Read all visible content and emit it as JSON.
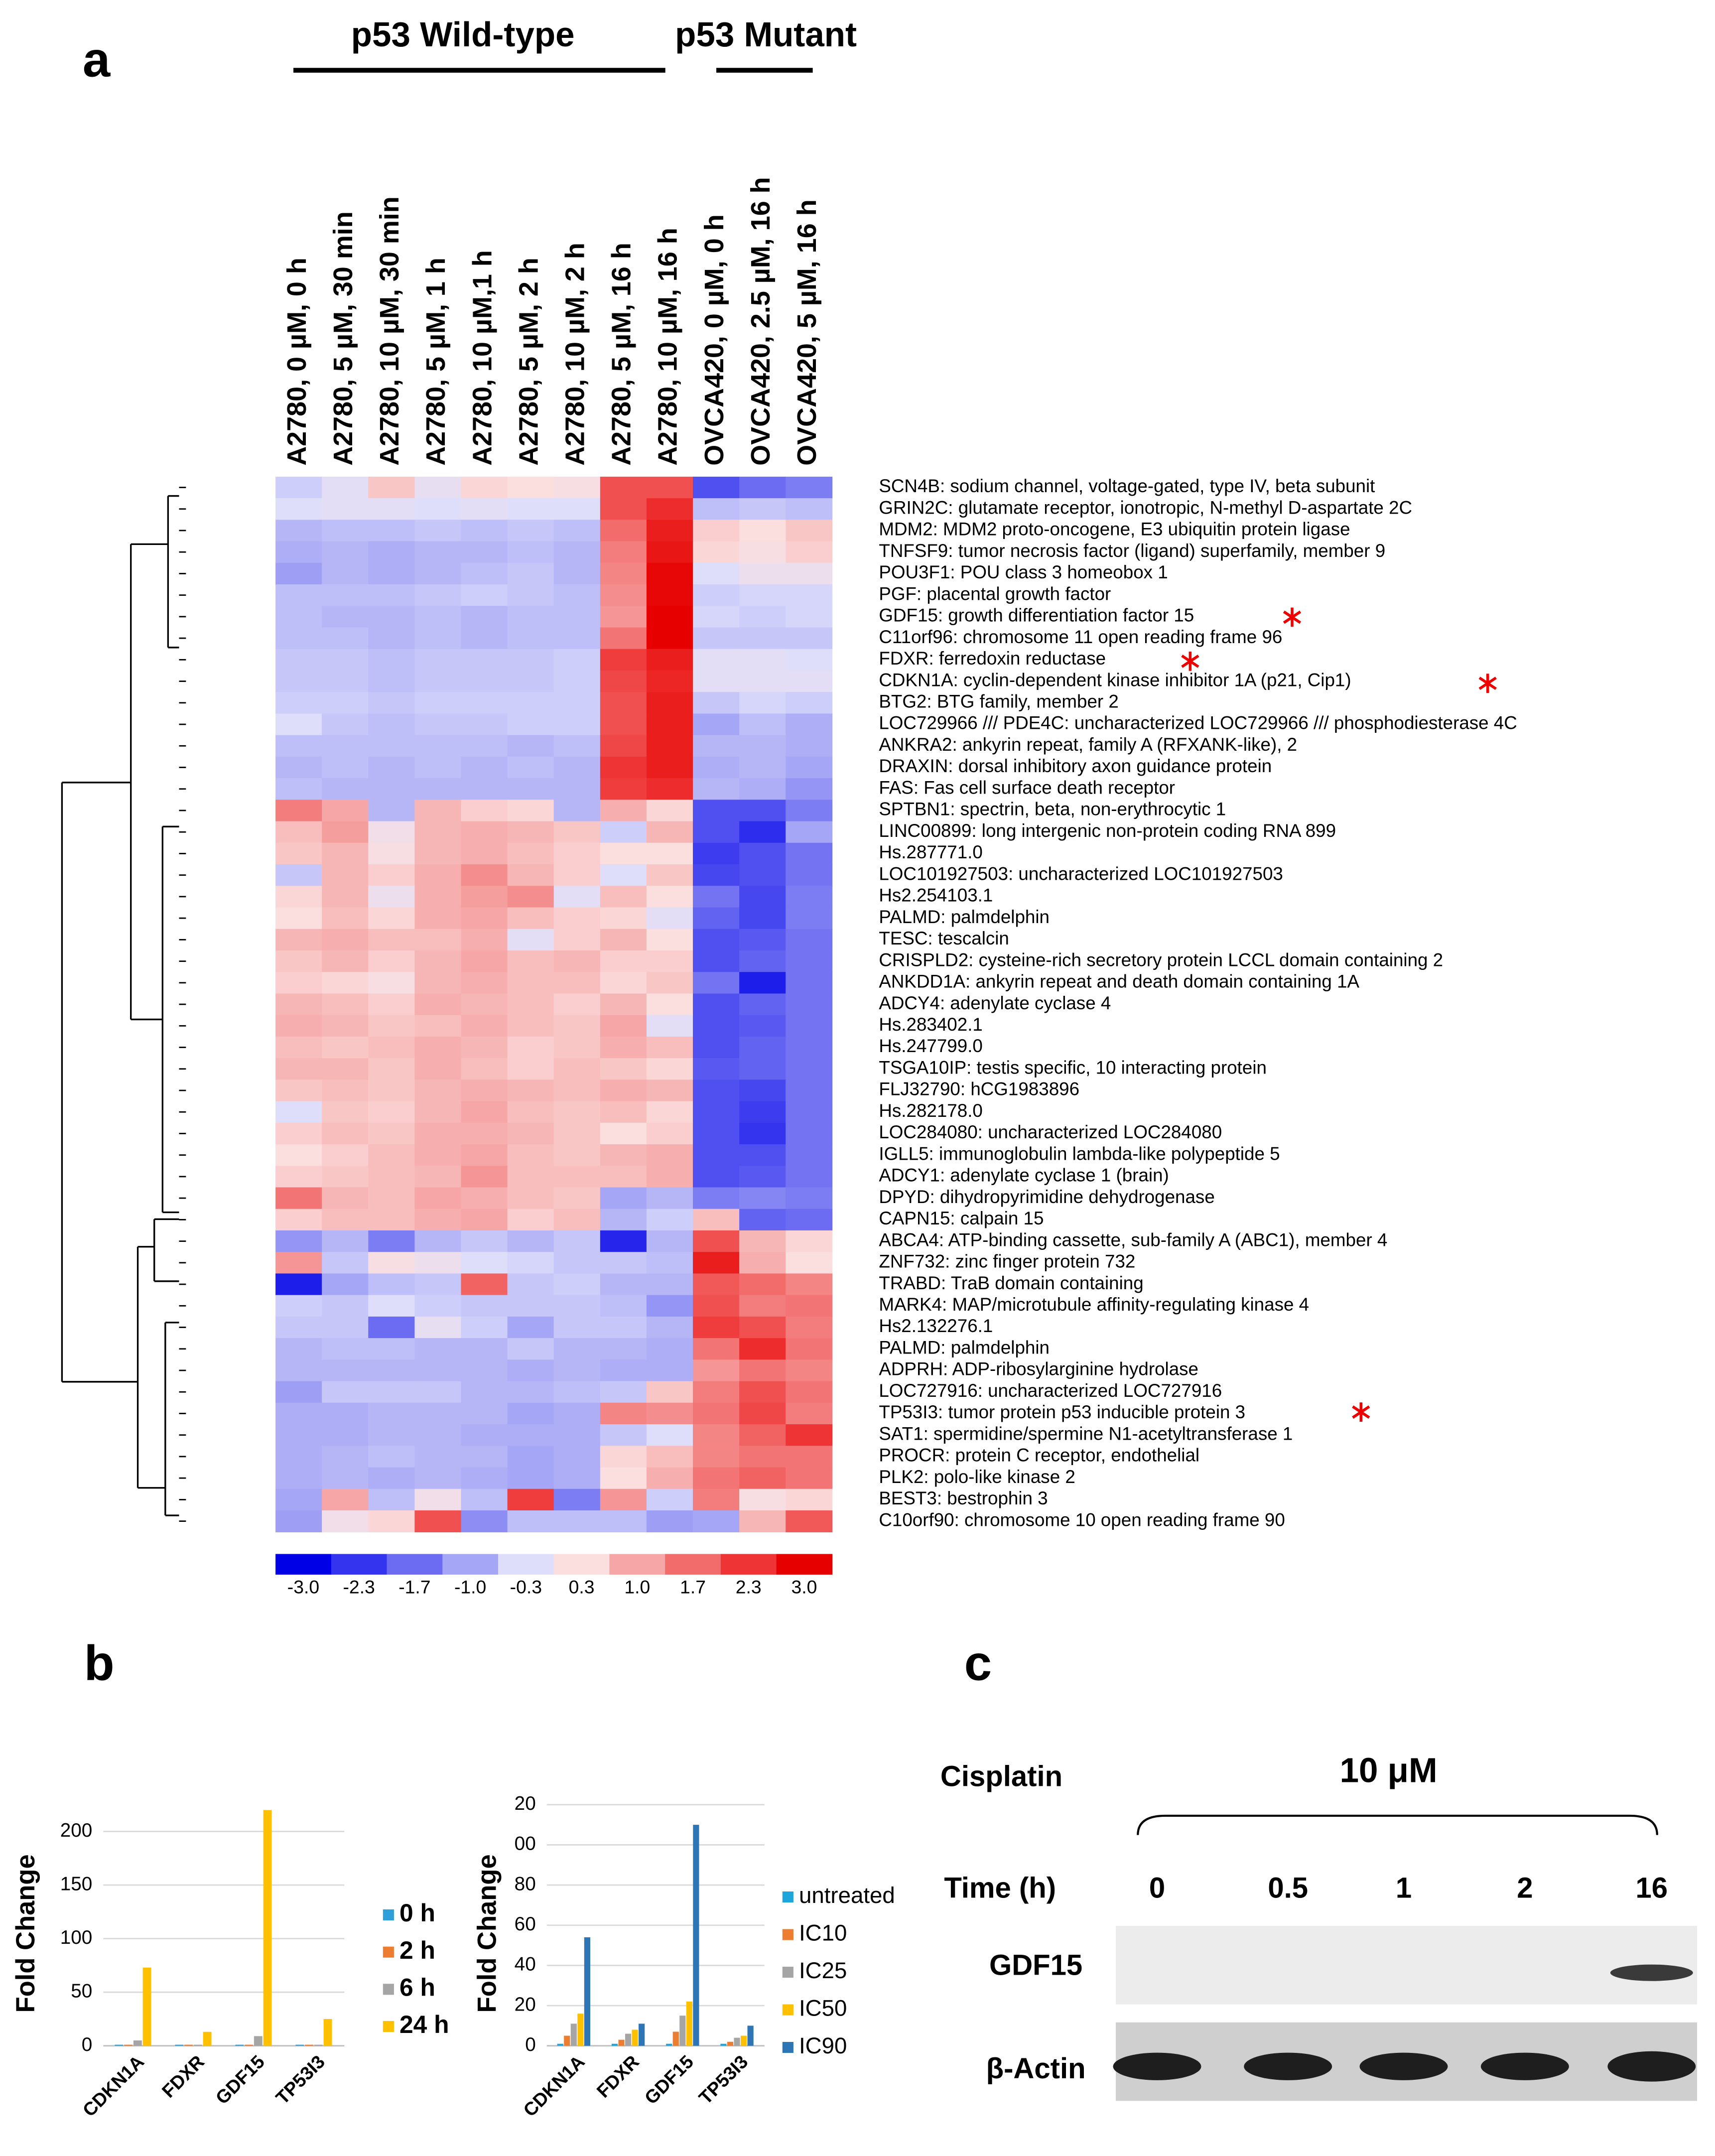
{
  "panel_labels": [
    "a",
    "b",
    "c"
  ],
  "chart_data": [
    {
      "type": "heatmap",
      "groups": [
        "p53 Wild-type",
        "p53 Mutant"
      ],
      "columns": [
        "A2780, 0 µM, 0 h",
        "A2780, 5 µM, 30 min",
        "A2780, 10 µM, 30 min",
        "A2780, 5 µM, 1 h",
        "A2780, 10 µM,1 h",
        "A2780, 5 µM, 2 h",
        "A2780, 10 µM, 2 h",
        "A2780, 5 µM, 16 h",
        "A2780, 10 µM, 16 h",
        "OVCA420, 0 µM, 0 h",
        "OVCA420, 2.5 µM, 16 h",
        "OVCA420, 5 µM, 16 h"
      ],
      "rows": [
        "SCN4B: sodium channel, voltage-gated, type IV, beta subunit",
        "GRIN2C: glutamate receptor, ionotropic, N-methyl D-aspartate 2C",
        "MDM2: MDM2 proto-oncogene, E3 ubiquitin protein ligase",
        "TNFSF9: tumor necrosis factor (ligand) superfamily, member 9",
        "POU3F1: POU class 3 homeobox 1",
        "PGF: placental growth factor",
        "GDF15: growth differentiation factor 15",
        "C11orf96: chromosome 11 open reading frame 96",
        "FDXR: ferredoxin reductase",
        "CDKN1A: cyclin-dependent kinase inhibitor 1A (p21, Cip1)",
        "BTG2: BTG family, member 2",
        "LOC729966 /// PDE4C: uncharacterized LOC729966 /// phosphodiesterase 4C",
        "ANKRA2: ankyrin repeat, family A (RFXANK-like), 2",
        "DRAXIN: dorsal inhibitory axon guidance protein",
        "FAS: Fas cell surface death receptor",
        "SPTBN1: spectrin, beta, non-erythrocytic 1",
        "LINC00899: long intergenic non-protein coding RNA 899",
        "Hs.287771.0",
        "LOC101927503: uncharacterized LOC101927503",
        "Hs2.254103.1",
        "PALMD: palmdelphin",
        "TESC: tescalcin",
        "CRISPLD2: cysteine-rich secretory protein LCCL domain containing 2",
        "ANKDD1A: ankyrin repeat and death domain containing 1A",
        "ADCY4: adenylate cyclase 4",
        "Hs.283402.1",
        "Hs.247799.0",
        "TSGA10IP: testis specific, 10 interacting protein",
        "FLJ32790: hCG1983896",
        "Hs.282178.0",
        "LOC284080: uncharacterized LOC284080",
        "IGLL5: immunoglobulin lambda-like polypeptide 5",
        "ADCY1: adenylate cyclase 1 (brain)",
        "DPYD: dihydropyrimidine dehydrogenase",
        "CAPN15: calpain 15",
        "ABCA4: ATP-binding cassette, sub-family A (ABC1), member 4",
        "ZNF732: zinc finger protein 732",
        "TRABD: TraB domain containing",
        "MARK4: MAP/microtubule affinity-regulating kinase 4",
        "Hs2.132276.1",
        "PALMD: palmdelphin",
        "ADPRH: ADP-ribosylarginine hydrolase",
        "LOC727916: uncharacterized LOC727916",
        "TP53I3: tumor protein p53 inducible protein 3",
        "SAT1: spermidine/spermine N1-acetyltransferase 1",
        "PROCR: protein C receptor, endothelial",
        "PLK2: polo-like kinase 2",
        "BEST3: bestrophin 3",
        "C10orf90: chromosome 10 open reading frame 90"
      ],
      "values": [
        [
          -0.5,
          -0.2,
          0.6,
          -0.1,
          0.4,
          0.3,
          0.2,
          2.0,
          2.0,
          -2.0,
          -1.7,
          -1.5
        ],
        [
          -0.3,
          -0.2,
          -0.2,
          -0.3,
          -0.2,
          -0.3,
          -0.3,
          2.0,
          2.4,
          -0.7,
          -0.6,
          -0.7
        ],
        [
          -0.8,
          -0.7,
          -0.7,
          -0.6,
          -0.7,
          -0.6,
          -0.7,
          1.7,
          2.6,
          0.5,
          0.3,
          0.6
        ],
        [
          -0.9,
          -0.8,
          -0.9,
          -0.8,
          -0.8,
          -0.7,
          -0.8,
          1.5,
          2.7,
          0.4,
          0.2,
          0.5
        ],
        [
          -1.1,
          -0.8,
          -0.9,
          -0.8,
          -0.7,
          -0.6,
          -0.8,
          1.4,
          2.9,
          -0.3,
          0,
          0
        ],
        [
          -0.7,
          -0.7,
          -0.7,
          -0.6,
          -0.5,
          -0.6,
          -0.7,
          1.3,
          2.9,
          -0.5,
          -0.4,
          -0.4
        ],
        [
          -0.7,
          -0.8,
          -0.8,
          -0.7,
          -0.8,
          -0.7,
          -0.7,
          1.2,
          3.0,
          -0.4,
          -0.5,
          -0.4
        ],
        [
          -0.7,
          -0.7,
          -0.8,
          -0.7,
          -0.8,
          -0.7,
          -0.7,
          1.6,
          3.0,
          -0.6,
          -0.6,
          -0.6
        ],
        [
          -0.6,
          -0.6,
          -0.7,
          -0.6,
          -0.6,
          -0.6,
          -0.5,
          2.2,
          2.6,
          -0.2,
          -0.2,
          -0.3
        ],
        [
          -0.6,
          -0.6,
          -0.7,
          -0.6,
          -0.6,
          -0.6,
          -0.5,
          2.1,
          2.5,
          -0.2,
          -0.2,
          -0.2
        ],
        [
          -0.5,
          -0.5,
          -0.6,
          -0.5,
          -0.5,
          -0.5,
          -0.5,
          2.0,
          2.6,
          -0.6,
          -0.4,
          -0.5
        ],
        [
          -0.3,
          -0.6,
          -0.7,
          -0.6,
          -0.6,
          -0.5,
          -0.5,
          2.0,
          2.6,
          -1.0,
          -0.7,
          -0.9
        ],
        [
          -0.7,
          -0.7,
          -0.7,
          -0.7,
          -0.7,
          -0.8,
          -0.7,
          2.1,
          2.6,
          -0.8,
          -0.8,
          -0.9
        ],
        [
          -0.8,
          -0.7,
          -0.8,
          -0.7,
          -0.8,
          -0.7,
          -0.8,
          2.3,
          2.6,
          -0.9,
          -0.8,
          -1.0
        ],
        [
          -0.7,
          -0.8,
          -0.8,
          -0.8,
          -0.8,
          -0.8,
          -0.8,
          2.2,
          2.4,
          -0.8,
          -0.9,
          -1.2
        ],
        [
          1.5,
          1.0,
          -0.8,
          0.8,
          0.5,
          0.4,
          -0.8,
          0.9,
          0.4,
          -2.0,
          -2.0,
          -1.5
        ],
        [
          0.7,
          1.1,
          0.1,
          0.8,
          0.9,
          0.8,
          0.6,
          -0.5,
          0.8,
          -2.0,
          -2.4,
          -1.0
        ],
        [
          0.6,
          0.8,
          0.2,
          0.8,
          0.9,
          0.7,
          0.5,
          0.3,
          0.3,
          -2.2,
          -2.0,
          -1.6
        ],
        [
          -0.6,
          0.8,
          0.5,
          0.9,
          1.3,
          0.8,
          0.5,
          -0.3,
          0.6,
          -2.1,
          -2.0,
          -1.6
        ],
        [
          0.4,
          0.8,
          0,
          0.9,
          1.1,
          1.3,
          -0.2,
          0.7,
          0.3,
          -1.6,
          -2.1,
          -1.5
        ],
        [
          0.3,
          0.7,
          0.4,
          0.9,
          1.0,
          0.7,
          0.5,
          0.4,
          -0.2,
          -1.8,
          -2.1,
          -1.5
        ],
        [
          0.8,
          0.9,
          0.7,
          0.7,
          0.9,
          -0.2,
          0.5,
          0.8,
          0.3,
          -2.0,
          -1.9,
          -1.6
        ],
        [
          0.6,
          0.8,
          0.5,
          0.8,
          1.0,
          0.7,
          0.8,
          0.5,
          0.5,
          -2.0,
          -1.8,
          -1.6
        ],
        [
          0.5,
          0.4,
          0.2,
          0.8,
          0.9,
          0.7,
          0.7,
          0.4,
          0.6,
          -1.6,
          -2.6,
          -1.6
        ],
        [
          0.8,
          0.7,
          0.5,
          0.9,
          0.8,
          0.7,
          0.5,
          0.8,
          0.3,
          -2.0,
          -1.8,
          -1.6
        ],
        [
          0.9,
          0.8,
          0.6,
          0.7,
          0.9,
          0.7,
          0.6,
          1.0,
          -0.2,
          -2.0,
          -1.9,
          -1.6
        ],
        [
          0.7,
          0.6,
          0.7,
          0.9,
          0.8,
          0.5,
          0.6,
          0.9,
          0.7,
          -2.0,
          -1.8,
          -1.6
        ],
        [
          0.8,
          0.8,
          0.6,
          0.9,
          0.7,
          0.5,
          0.7,
          0.6,
          0.4,
          -1.9,
          -1.8,
          -1.6
        ],
        [
          0.6,
          0.7,
          0.6,
          0.8,
          0.9,
          0.8,
          0.7,
          0.9,
          0.8,
          -2.0,
          -2.1,
          -1.6
        ],
        [
          -0.3,
          0.6,
          0.5,
          0.8,
          1.0,
          0.7,
          0.6,
          0.7,
          0.4,
          -2.0,
          -2.2,
          -1.6
        ],
        [
          0.5,
          0.7,
          0.6,
          0.9,
          0.9,
          0.8,
          0.6,
          0.3,
          0.5,
          -2.0,
          -2.3,
          -1.6
        ],
        [
          0.3,
          0.5,
          0.7,
          0.9,
          1.0,
          0.7,
          0.6,
          0.8,
          0.9,
          -2.0,
          -2.0,
          -1.6
        ],
        [
          0.5,
          0.6,
          0.7,
          0.8,
          1.2,
          0.7,
          0.7,
          0.7,
          0.9,
          -2.0,
          -1.9,
          -1.6
        ],
        [
          1.6,
          0.8,
          0.7,
          1.0,
          0.9,
          0.7,
          0.6,
          -1.0,
          -0.8,
          -1.5,
          -1.4,
          -1.5
        ],
        [
          0.5,
          0.7,
          0.7,
          0.9,
          1.0,
          0.5,
          0.7,
          -0.8,
          -0.5,
          0.7,
          -1.8,
          -1.7
        ],
        [
          -1.2,
          -0.8,
          -1.5,
          -0.8,
          -0.6,
          -0.8,
          -0.6,
          -2.5,
          -0.8,
          2.0,
          0.8,
          0.4
        ],
        [
          1.2,
          -0.6,
          0.2,
          0,
          -0.3,
          -0.4,
          -0.6,
          -0.6,
          -0.7,
          2.6,
          0.9,
          0.3
        ],
        [
          -2.6,
          -1.0,
          -0.7,
          -0.6,
          1.8,
          -0.6,
          -0.5,
          -0.8,
          -0.8,
          1.9,
          1.7,
          1.4
        ],
        [
          -0.5,
          -0.6,
          -0.3,
          -0.5,
          -0.6,
          -0.6,
          -0.6,
          -0.7,
          -1.2,
          2.0,
          1.5,
          1.6
        ],
        [
          -0.6,
          -0.6,
          -1.7,
          -0.1,
          -0.5,
          -1.0,
          -0.6,
          -0.6,
          -0.8,
          2.2,
          2.0,
          1.5
        ],
        [
          -0.8,
          -0.7,
          -0.7,
          -0.8,
          -0.8,
          -0.6,
          -0.8,
          -0.8,
          -0.9,
          1.6,
          2.4,
          1.6
        ],
        [
          -0.8,
          -0.8,
          -0.8,
          -0.8,
          -0.8,
          -0.9,
          -0.8,
          -0.9,
          -0.9,
          1.2,
          1.6,
          1.4
        ],
        [
          -1.1,
          -0.6,
          -0.6,
          -0.6,
          -0.8,
          -0.8,
          -0.7,
          -0.6,
          0.6,
          1.5,
          2.0,
          1.6
        ],
        [
          -0.9,
          -0.9,
          -0.8,
          -0.8,
          -0.8,
          -1.0,
          -0.9,
          1.4,
          1.3,
          1.6,
          2.1,
          1.5
        ],
        [
          -0.9,
          -0.9,
          -0.8,
          -0.8,
          -0.9,
          -0.9,
          -0.9,
          -0.6,
          -0.3,
          1.4,
          1.8,
          2.3
        ],
        [
          -0.9,
          -0.8,
          -0.7,
          -0.8,
          -0.8,
          -1.0,
          -0.9,
          0.4,
          0.7,
          1.4,
          1.6,
          1.6
        ],
        [
          -0.9,
          -0.8,
          -0.9,
          -0.8,
          -0.9,
          -1.0,
          -0.9,
          0.3,
          0.9,
          1.6,
          1.8,
          1.6
        ],
        [
          -1.0,
          1.0,
          -0.7,
          0.1,
          -0.7,
          2.2,
          -1.5,
          1.2,
          -0.5,
          1.5,
          0.2,
          0.4
        ],
        [
          -1.1,
          0.1,
          0.4,
          2.0,
          -1.3,
          -0.7,
          -0.7,
          -0.7,
          -1.1,
          -1.0,
          0.8,
          1.9
        ]
      ],
      "colorbar": {
        "ticks": [
          {
            "value": -3,
            "label": "-3.0"
          },
          -2.3,
          -1.7,
          {
            "value": -1,
            "label": "-1.0"
          },
          -0.3,
          0.3,
          {
            "value": 1,
            "label": "1.0"
          },
          1.7,
          2.3,
          {
            "value": 3,
            "label": "3.0"
          }
        ],
        "colors": [
          "#0000e6",
          "#3434ee",
          "#6c6cf2",
          "#a6a6f6",
          "#dedefb",
          "#fbdede",
          "#f6a6a6",
          "#f26c6c",
          "#ee3434",
          "#e60000"
        ]
      }
    },
    {
      "type": "bar",
      "ylabel": "Fold Change",
      "categories": [
        "CDKN1A",
        "FDXR",
        "GDF15",
        "TP53I3"
      ],
      "series": [
        {
          "name": "0 h",
          "color": "#2e9fd8",
          "values": [
            1,
            1,
            1,
            1
          ]
        },
        {
          "name": "2 h",
          "color": "#ed7d31",
          "values": [
            1,
            1,
            1,
            1
          ]
        },
        {
          "name": "6 h",
          "color": "#a5a5a5",
          "values": [
            5,
            1,
            9,
            1
          ]
        },
        {
          "name": "24 h",
          "color": "#ffc000",
          "values": [
            73,
            13,
            220,
            25
          ]
        }
      ],
      "ylim": [
        0,
        225
      ],
      "yticks": [
        0,
        50,
        100,
        150,
        200
      ],
      "grid": true
    },
    {
      "type": "bar",
      "ylabel": "Fold Change",
      "categories": [
        "CDKN1A",
        "FDXR",
        "GDF15",
        "TP53I3"
      ],
      "series": [
        {
          "name": "untreated",
          "color": "#1ea5dc",
          "values": [
            1,
            1,
            1,
            1
          ]
        },
        {
          "name": "IC10",
          "color": "#ed7d31",
          "values": [
            5,
            3,
            7,
            2
          ]
        },
        {
          "name": "IC25",
          "color": "#a5a5a5",
          "values": [
            11,
            6,
            15,
            4
          ]
        },
        {
          "name": "IC50",
          "color": "#ffc000",
          "values": [
            16,
            8,
            22,
            5
          ]
        },
        {
          "name": "IC90",
          "color": "#2e75b6",
          "values": [
            54,
            11,
            110,
            10
          ]
        }
      ],
      "ylim": [
        0,
        120
      ],
      "yticks": [
        0,
        20,
        40,
        60,
        80,
        {
          "value": 100,
          "label": "00"
        },
        {
          "value": 120,
          "label": "20"
        }
      ],
      "grid": true
    }
  ],
  "blot": {
    "treatment_label": "Cisplatin",
    "dose": "10 μM",
    "time_label": "Time (h)",
    "times": [
      "0",
      "0.5",
      "1",
      "2",
      "16"
    ],
    "proteins": [
      "GDF15",
      "β-Actin"
    ]
  }
}
